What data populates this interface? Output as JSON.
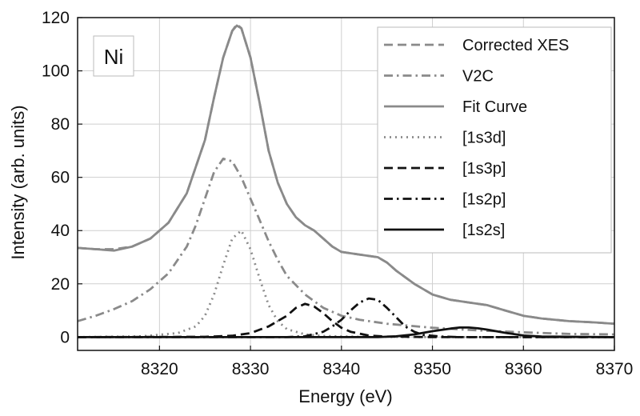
{
  "chart_data": {
    "type": "line",
    "xlabel": "Energy (eV)",
    "ylabel": "Intensity (arb. units)",
    "xlim": [
      8311,
      8370
    ],
    "ylim": [
      -5,
      120
    ],
    "xticks": [
      8320,
      8330,
      8340,
      8350,
      8360,
      8370
    ],
    "yticks": [
      0,
      20,
      40,
      60,
      80,
      100,
      120
    ],
    "grid": true,
    "legend_position": "top-right",
    "annotation": "Ni",
    "series": [
      {
        "name": "Corrected XES",
        "style": "dashed",
        "color": "#8a8a8a",
        "x": [
          8311,
          8313,
          8315,
          8317,
          8319,
          8321,
          8323,
          8325,
          8326,
          8327,
          8328,
          8328.5,
          8329,
          8330,
          8331,
          8332,
          8333,
          8334,
          8335,
          8336,
          8337,
          8338,
          8339,
          8340,
          8342,
          8343,
          8344,
          8345,
          8346,
          8348,
          8350,
          8352,
          8354,
          8356,
          8358,
          8360,
          8362,
          8365,
          8368,
          8370
        ],
        "y": [
          33.5,
          33,
          33,
          34,
          37,
          43,
          54,
          74,
          90,
          105,
          115,
          117.5,
          116,
          105,
          88,
          70,
          58,
          50,
          45,
          42,
          40,
          37,
          34,
          32,
          31,
          30.5,
          30,
          28,
          25,
          20,
          16,
          14,
          13,
          12,
          10,
          8,
          7,
          6,
          5.5,
          5
        ]
      },
      {
        "name": "V2C",
        "style": "dashdot",
        "color": "#8a8a8a",
        "x": [
          8311,
          8313,
          8315,
          8317,
          8319,
          8321,
          8323,
          8324,
          8325,
          8326,
          8327,
          8328,
          8329,
          8330,
          8331,
          8332,
          8333,
          8334,
          8336,
          8338,
          8340,
          8342,
          8345,
          8350,
          8355,
          8360,
          8365,
          8370
        ],
        "y": [
          6,
          8,
          10.5,
          13.5,
          18,
          24,
          34,
          42,
          52,
          62,
          67,
          66,
          60,
          52,
          44,
          36,
          29,
          23,
          16,
          11,
          8,
          6.5,
          5,
          3.5,
          2.5,
          1.8,
          1.2,
          1
        ]
      },
      {
        "name": "Fit Curve",
        "style": "solid",
        "color": "#8a8a8a",
        "x": [
          8311,
          8313,
          8315,
          8317,
          8319,
          8321,
          8323,
          8325,
          8326,
          8327,
          8328,
          8328.5,
          8329,
          8330,
          8331,
          8332,
          8333,
          8334,
          8335,
          8336,
          8337,
          8338,
          8339,
          8340,
          8342,
          8343,
          8344,
          8345,
          8346,
          8348,
          8350,
          8352,
          8354,
          8356,
          8358,
          8360,
          8362,
          8365,
          8368,
          8370
        ],
        "y": [
          33.5,
          33,
          32.5,
          34,
          37,
          43,
          54,
          74,
          90,
          105,
          115,
          117,
          116,
          105,
          88,
          70,
          58,
          50,
          45,
          42,
          40,
          37,
          34,
          32,
          31,
          30.5,
          30,
          28,
          25,
          20,
          16,
          14,
          13,
          12,
          10,
          8,
          7,
          6,
          5.5,
          5
        ]
      },
      {
        "name": "[1s3d]",
        "style": "dotted",
        "color": "#8a8a8a",
        "x": [
          8311,
          8318,
          8322,
          8324,
          8325,
          8326,
          8327,
          8328,
          8329,
          8330,
          8331,
          8332,
          8333,
          8334,
          8336,
          8338,
          8342,
          8350,
          8370
        ],
        "y": [
          0,
          0.3,
          1.5,
          4,
          8,
          16,
          27,
          37,
          40,
          33,
          22,
          12,
          6,
          3,
          1,
          0.4,
          0.1,
          0,
          0
        ]
      },
      {
        "name": "[1s3p]",
        "style": "dashed",
        "color": "#111111",
        "x": [
          8311,
          8325,
          8328,
          8330,
          8332,
          8334,
          8335,
          8336,
          8337,
          8338,
          8339,
          8340,
          8341,
          8343,
          8345,
          8350,
          8370
        ],
        "y": [
          0,
          0.1,
          0.5,
          1.5,
          4,
          8,
          11,
          12.5,
          11.5,
          9,
          6,
          3.5,
          2,
          0.6,
          0.2,
          0,
          0
        ]
      },
      {
        "name": "[1s2p]",
        "style": "dashdot",
        "color": "#111111",
        "x": [
          8311,
          8334,
          8336,
          8338,
          8339,
          8340,
          8341,
          8342,
          8343,
          8344,
          8345,
          8346,
          8347,
          8348,
          8349,
          8351,
          8353,
          8370
        ],
        "y": [
          0,
          0,
          0.3,
          2,
          4,
          6.5,
          10,
          13,
          14.5,
          14,
          11,
          7.5,
          4,
          2,
          0.8,
          0.2,
          0,
          0
        ]
      },
      {
        "name": "[1s2s]",
        "style": "solid",
        "color": "#111111",
        "x": [
          8311,
          8344,
          8346,
          8348,
          8350,
          8352,
          8353,
          8354,
          8355,
          8356,
          8358,
          8360,
          8362,
          8370
        ],
        "y": [
          0,
          0,
          0.3,
          1,
          2.2,
          3.2,
          3.6,
          3.6,
          3.3,
          2.8,
          1.6,
          0.6,
          0.2,
          0
        ]
      }
    ]
  }
}
